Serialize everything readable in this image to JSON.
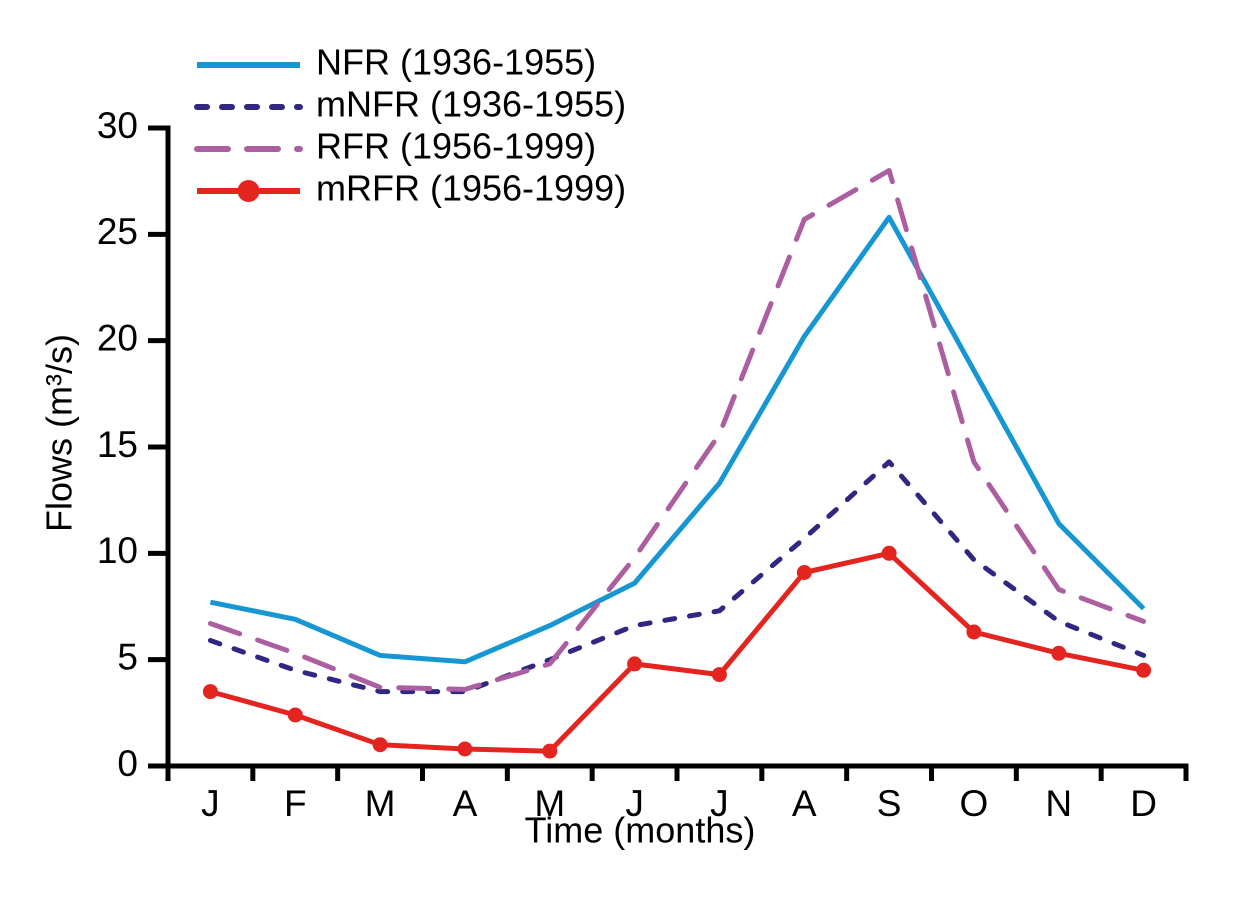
{
  "chart_data": {
    "type": "line",
    "title": "",
    "xlabel": "Time (months)",
    "ylabel": "Flows (m³/s)",
    "categories": [
      "J",
      "F",
      "M",
      "A",
      "M",
      "J",
      "J",
      "A",
      "S",
      "O",
      "N",
      "D"
    ],
    "yticks": [
      0,
      5,
      10,
      15,
      20,
      25,
      30
    ],
    "ylim": [
      0,
      30
    ],
    "grid": false,
    "legend_position": "top-left",
    "axis_color": "#000000",
    "series": [
      {
        "name": "NFR (1936-1955)",
        "color": "#1697D4",
        "line_style": "solid",
        "marker": "none",
        "values": [
          7.7,
          6.9,
          5.2,
          4.9,
          6.6,
          8.6,
          13.3,
          20.2,
          25.8,
          18.6,
          11.4,
          7.4
        ]
      },
      {
        "name": "mNFR (1936-1955)",
        "color": "#2F2781",
        "line_style": "dashed",
        "marker": "none",
        "values": [
          5.9,
          4.5,
          3.5,
          3.5,
          5.0,
          6.6,
          7.3,
          10.7,
          14.3,
          9.7,
          6.8,
          5.2
        ]
      },
      {
        "name": "RFR (1956-1999)",
        "color": "#AC5FA0",
        "line_style": "long-dash",
        "marker": "none",
        "values": [
          6.7,
          5.3,
          3.7,
          3.6,
          4.8,
          9.8,
          15.6,
          25.7,
          28.0,
          14.3,
          8.3,
          6.8
        ]
      },
      {
        "name": "mRFR (1956-1999)",
        "color": "#E4241E",
        "line_style": "solid",
        "marker": "circle",
        "values": [
          3.5,
          2.4,
          1.0,
          0.8,
          0.7,
          4.8,
          4.3,
          9.1,
          10.0,
          6.3,
          5.3,
          4.5
        ]
      }
    ]
  }
}
